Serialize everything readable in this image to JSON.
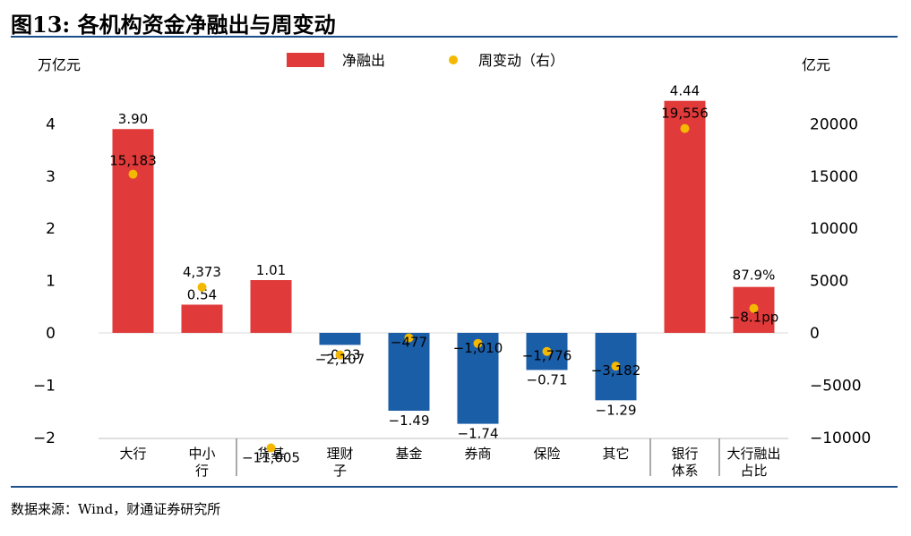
{
  "title": "图13: 各机构资金净融出与周变动",
  "source": "数据来源：Wind，财通证券研究所",
  "chart_data": {
    "type": "bar",
    "title": "",
    "categories": [
      "大行",
      "中小行",
      "货基",
      "理财子",
      "基金",
      "券商",
      "保险",
      "其它",
      "银行体系",
      "大行融出占比"
    ],
    "category_lines": [
      [
        "大行"
      ],
      [
        "中小",
        "行"
      ],
      [
        "货基"
      ],
      [
        "理财",
        "子"
      ],
      [
        "基金"
      ],
      [
        "券商"
      ],
      [
        "保险"
      ],
      [
        "其它"
      ],
      [
        "银行",
        "体系"
      ],
      [
        "大行融出",
        "占比"
      ]
    ],
    "y_left": {
      "label": "万亿元",
      "range": [
        -2,
        4.7
      ],
      "ticks": [
        -2,
        -1,
        0,
        1,
        2,
        3,
        4
      ]
    },
    "y_right": {
      "label": "亿元",
      "range": [
        -12000,
        22000
      ],
      "ticks": [
        -10000,
        -5000,
        0,
        5000,
        10000,
        15000,
        20000
      ]
    },
    "series": [
      {
        "name": "净融出",
        "axis": "left",
        "type": "bar",
        "values": [
          3.9,
          0.54,
          1.01,
          -0.23,
          -1.49,
          -1.74,
          -0.71,
          -1.29,
          4.44,
          null
        ],
        "labels": [
          "3.90",
          "0.54",
          "1.01",
          "-0.23",
          "-1.49",
          "-1.74",
          "-0.71",
          "-1.29",
          "4.44",
          "87.9%"
        ]
      },
      {
        "name": "周变动（右）",
        "axis": "right",
        "type": "scatter",
        "values": [
          15183,
          4373,
          -11005,
          -2107,
          -477,
          -1010,
          -1776,
          -3182,
          19556,
          null
        ],
        "labels": [
          "15,183",
          "4,373",
          "-11,005",
          "-2,107",
          "-477",
          "-1,010",
          "-1,776",
          "-3,182",
          "19,556",
          "-8.1pp"
        ]
      }
    ],
    "ratio_bar": {
      "bar_value": 0.879,
      "point_value": -0.081
    },
    "colors": {
      "positive": "#e03a3a",
      "negative": "#1a5ea8",
      "dot": "#f5b800",
      "rule": "#1a4f8b"
    },
    "separators_after": [
      1,
      7,
      8
    ],
    "legend": "top-center",
    "grid": false
  }
}
